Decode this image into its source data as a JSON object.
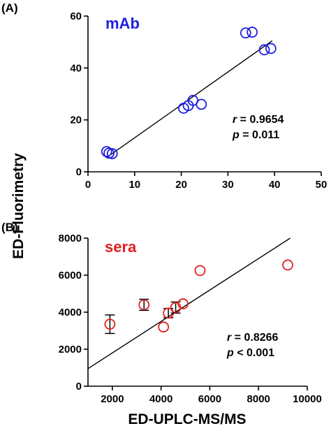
{
  "shared_labels": {
    "ylabel": "ED-Fluorimetry",
    "xlabel": "ED-UPLC-MS/MS"
  },
  "chart_data": [
    {
      "panel": "(A)",
      "type": "scatter",
      "series_name": "mAb",
      "marker_color": "#1f1fe0",
      "xlim": [
        0,
        50
      ],
      "ylim": [
        0,
        60
      ],
      "xticks": [
        "0",
        "10",
        "20",
        "30",
        "40",
        "50"
      ],
      "yticks": [
        "0",
        "20",
        "40",
        "60"
      ],
      "points": [
        {
          "x": 4.0,
          "y": 7.8
        },
        {
          "x": 4.5,
          "y": 7.2
        },
        {
          "x": 5.2,
          "y": 7.0
        },
        {
          "x": 20.5,
          "y": 24.5
        },
        {
          "x": 21.5,
          "y": 25.5
        },
        {
          "x": 22.5,
          "y": 27.5
        },
        {
          "x": 24.3,
          "y": 26.0
        },
        {
          "x": 33.8,
          "y": 53.5
        },
        {
          "x": 35.2,
          "y": 53.8
        },
        {
          "x": 37.8,
          "y": 47.0
        },
        {
          "x": 39.2,
          "y": 47.5
        }
      ],
      "fit_line": {
        "x": [
          4,
          39.5
        ],
        "y": [
          5.5,
          50.5
        ]
      },
      "stats": {
        "r_label": "r",
        "r_value": " = 0.9654",
        "p_label": "p",
        "p_value": " = 0.011"
      }
    },
    {
      "panel": "(B)",
      "type": "scatter",
      "series_name": "sera",
      "marker_color": "#e02020",
      "xlim": [
        1000,
        10000
      ],
      "ylim": [
        0,
        8000
      ],
      "xticks": [
        "2000",
        "4000",
        "6000",
        "8000",
        "10000"
      ],
      "yticks": [
        "0",
        "2000",
        "4000",
        "6000",
        "8000"
      ],
      "points": [
        {
          "x": 1900,
          "y": 3350,
          "err": 500
        },
        {
          "x": 3300,
          "y": 4400,
          "err": 300
        },
        {
          "x": 4100,
          "y": 3200
        },
        {
          "x": 4300,
          "y": 3950,
          "err": 250
        },
        {
          "x": 4600,
          "y": 4250,
          "err": 300
        },
        {
          "x": 4900,
          "y": 4450
        },
        {
          "x": 5600,
          "y": 6250
        },
        {
          "x": 9200,
          "y": 6550
        }
      ],
      "fit_line": {
        "x": [
          1000,
          9300
        ],
        "y": [
          950,
          8000
        ]
      },
      "stats": {
        "r_label": "r",
        "r_value": " = 0.8266",
        "p_label": "p",
        "p_value": " < 0.001"
      }
    }
  ]
}
